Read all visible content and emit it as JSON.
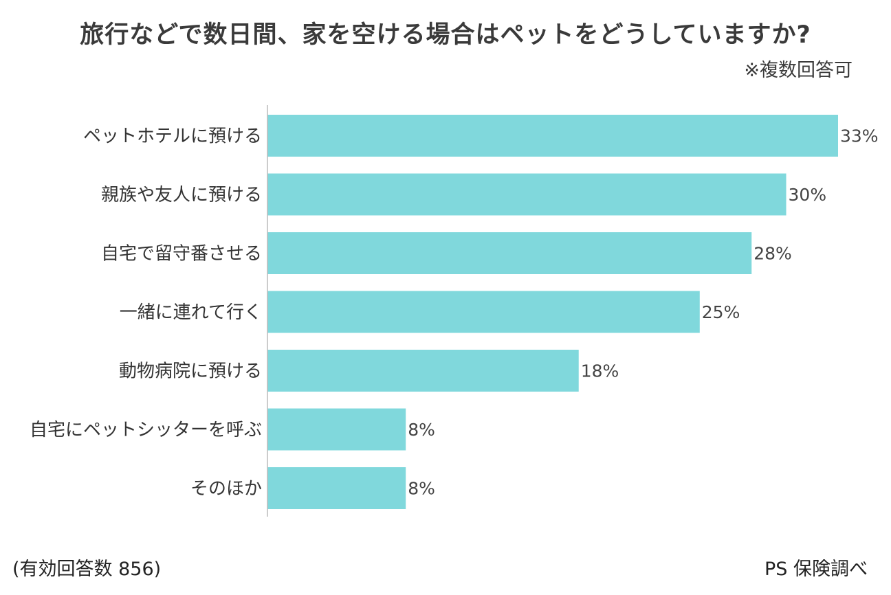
{
  "title": "旅行などで数日間、家を空ける場合はペットをどうしていますか?",
  "note": "※複数回答可",
  "sample": "(有効回答数 856)",
  "source": "PS 保険調べ",
  "chart_data": {
    "type": "bar",
    "orientation": "horizontal",
    "categories": [
      "ペットホテルに預ける",
      "親族や友人に預ける",
      "自宅で留守番させる",
      "一緒に連れて行く",
      "動物病院に預ける",
      "自宅にペットシッターを呼ぶ",
      "そのほか"
    ],
    "values": [
      33,
      30,
      28,
      25,
      18,
      8,
      8
    ],
    "value_labels": [
      "33%",
      "30%",
      "28%",
      "25%",
      "18%",
      "8%",
      "8%"
    ],
    "unit": "%",
    "xlim": [
      0,
      33
    ],
    "grid": false,
    "legend": "none",
    "bar_color": "#80d8dc",
    "axis_color": "#bbbbbb"
  }
}
